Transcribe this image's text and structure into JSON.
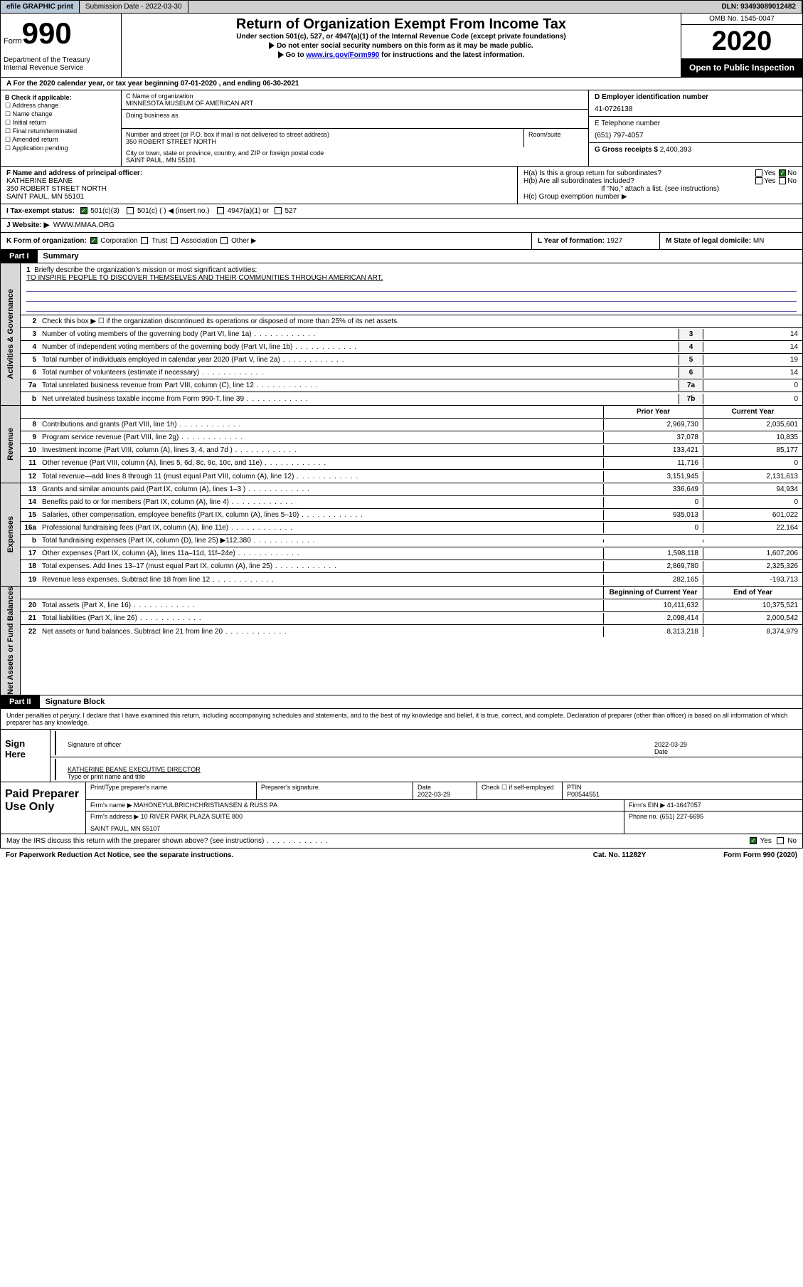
{
  "topbar": {
    "efile": "efile GRAPHIC print",
    "submission_label": "Submission Date",
    "submission_date": "2022-03-30",
    "dln_label": "DLN:",
    "dln": "93493089012482"
  },
  "header": {
    "form_prefix": "Form",
    "form_num": "990",
    "dept": "Department of the Treasury\nInternal Revenue Service",
    "title": "Return of Organization Exempt From Income Tax",
    "subtitle": "Under section 501(c), 527, or 4947(a)(1) of the Internal Revenue Code (except private foundations)",
    "note1": "Do not enter social security numbers on this form as it may be made public.",
    "note2_pre": "Go to ",
    "note2_link": "www.irs.gov/Form990",
    "note2_post": " for instructions and the latest information.",
    "omb": "OMB No. 1545-0047",
    "year": "2020",
    "otp": "Open to Public Inspection"
  },
  "lineA": "A For the 2020 calendar year, or tax year beginning 07-01-2020   , and ending 06-30-2021",
  "sectionB": {
    "label": "B Check if applicable:",
    "items": [
      "☐ Address change",
      "☐ Name change",
      "☐ Initial return",
      "☐ Final return/terminated",
      "☐ Amended return",
      "☐ Application pending"
    ]
  },
  "sectionC": {
    "name_label": "C Name of organization",
    "name": "MINNESOTA MUSEUM OF AMERICAN ART",
    "dba_label": "Doing business as",
    "street_label": "Number and street (or P.O. box if mail is not delivered to street address)",
    "street": "350 ROBERT STREET NORTH",
    "room_label": "Room/suite",
    "city_label": "City or town, state or province, country, and ZIP or foreign postal code",
    "city": "SAINT PAUL, MN  55101"
  },
  "sectionD": {
    "label": "D Employer identification number",
    "ein": "41-0726138"
  },
  "sectionE": {
    "label": "E Telephone number",
    "phone": "(651) 797-4057"
  },
  "sectionG": {
    "label": "G Gross receipts $",
    "amount": "2,400,393"
  },
  "sectionF": {
    "label": "F  Name and address of principal officer:",
    "name": "KATHERINE BEANE",
    "street": "350 ROBERT STREET NORTH",
    "city": "SAINT PAUL, MN  55101"
  },
  "sectionH": {
    "ha": "H(a)  Is this a group return for subordinates?",
    "hb": "H(b)  Are all subordinates included?",
    "hb_note": "If \"No,\" attach a list. (see instructions)",
    "hc": "H(c)  Group exemption number ▶",
    "yes": "Yes",
    "no": "No"
  },
  "sectionI": {
    "label": "I  Tax-exempt status:",
    "opts": [
      "501(c)(3)",
      "501(c) (  ) ◀ (insert no.)",
      "4947(a)(1) or",
      "527"
    ]
  },
  "sectionJ": {
    "label": "J  Website: ▶",
    "value": "WWW.MMAA.ORG"
  },
  "sectionK": {
    "label": "K Form of organization:",
    "opts": [
      "Corporation",
      "Trust",
      "Association",
      "Other ▶"
    ]
  },
  "sectionL": {
    "label": "L Year of formation:",
    "value": "1927"
  },
  "sectionM": {
    "label": "M State of legal domicile:",
    "value": "MN"
  },
  "partI": {
    "tab": "Part I",
    "title": "Summary",
    "governance_label": "Activities & Governance",
    "revenue_label": "Revenue",
    "expenses_label": "Expenses",
    "netassets_label": "Net Assets or Fund Balances",
    "q1": "Briefly describe the organization's mission or most significant activities:",
    "mission": "TO INSPIRE PEOPLE TO DISCOVER THEMSELVES AND THEIR COMMUNITIES THROUGH AMERICAN ART.",
    "q2": "Check this box ▶ ☐  if the organization discontinued its operations or disposed of more than 25% of its net assets.",
    "rows_gov": [
      {
        "n": "3",
        "d": "Number of voting members of the governing body (Part VI, line 1a)",
        "box": "3",
        "v": "14"
      },
      {
        "n": "4",
        "d": "Number of independent voting members of the governing body (Part VI, line 1b)",
        "box": "4",
        "v": "14"
      },
      {
        "n": "5",
        "d": "Total number of individuals employed in calendar year 2020 (Part V, line 2a)",
        "box": "5",
        "v": "19"
      },
      {
        "n": "6",
        "d": "Total number of volunteers (estimate if necessary)",
        "box": "6",
        "v": "14"
      },
      {
        "n": "7a",
        "d": "Total unrelated business revenue from Part VIII, column (C), line 12",
        "box": "7a",
        "v": "0"
      },
      {
        "n": "b",
        "d": "Net unrelated business taxable income from Form 990-T, line 39",
        "box": "7b",
        "v": "0"
      }
    ],
    "col_prior": "Prior Year",
    "col_current": "Current Year",
    "rows_rev": [
      {
        "n": "8",
        "d": "Contributions and grants (Part VIII, line 1h)",
        "p": "2,969,730",
        "c": "2,035,601"
      },
      {
        "n": "9",
        "d": "Program service revenue (Part VIII, line 2g)",
        "p": "37,078",
        "c": "10,835"
      },
      {
        "n": "10",
        "d": "Investment income (Part VIII, column (A), lines 3, 4, and 7d )",
        "p": "133,421",
        "c": "85,177"
      },
      {
        "n": "11",
        "d": "Other revenue (Part VIII, column (A), lines 5, 6d, 8c, 9c, 10c, and 11e)",
        "p": "11,716",
        "c": "0"
      },
      {
        "n": "12",
        "d": "Total revenue—add lines 8 through 11 (must equal Part VIII, column (A), line 12)",
        "p": "3,151,945",
        "c": "2,131,613"
      }
    ],
    "rows_exp": [
      {
        "n": "13",
        "d": "Grants and similar amounts paid (Part IX, column (A), lines 1–3 )",
        "p": "336,649",
        "c": "94,934"
      },
      {
        "n": "14",
        "d": "Benefits paid to or for members (Part IX, column (A), line 4)",
        "p": "0",
        "c": "0"
      },
      {
        "n": "15",
        "d": "Salaries, other compensation, employee benefits (Part IX, column (A), lines 5–10)",
        "p": "935,013",
        "c": "601,022"
      },
      {
        "n": "16a",
        "d": "Professional fundraising fees (Part IX, column (A), line 11e)",
        "p": "0",
        "c": "22,164"
      },
      {
        "n": "b",
        "d": "Total fundraising expenses (Part IX, column (D), line 25) ▶112,380",
        "p": "",
        "c": ""
      },
      {
        "n": "17",
        "d": "Other expenses (Part IX, column (A), lines 11a–11d, 11f–24e)",
        "p": "1,598,118",
        "c": "1,607,206"
      },
      {
        "n": "18",
        "d": "Total expenses. Add lines 13–17 (must equal Part IX, column (A), line 25)",
        "p": "2,869,780",
        "c": "2,325,326"
      },
      {
        "n": "19",
        "d": "Revenue less expenses. Subtract line 18 from line 12",
        "p": "282,165",
        "c": "-193,713"
      }
    ],
    "col_begin": "Beginning of Current Year",
    "col_end": "End of Year",
    "rows_net": [
      {
        "n": "20",
        "d": "Total assets (Part X, line 16)",
        "p": "10,411,632",
        "c": "10,375,521"
      },
      {
        "n": "21",
        "d": "Total liabilities (Part X, line 26)",
        "p": "2,098,414",
        "c": "2,000,542"
      },
      {
        "n": "22",
        "d": "Net assets or fund balances. Subtract line 21 from line 20",
        "p": "8,313,218",
        "c": "8,374,979"
      }
    ]
  },
  "partII": {
    "tab": "Part II",
    "title": "Signature Block",
    "penalty": "Under penalties of perjury, I declare that I have examined this return, including accompanying schedules and statements, and to the best of my knowledge and belief, it is true, correct, and complete. Declaration of preparer (other than officer) is based on all information of which preparer has any knowledge.",
    "sign_here": "Sign Here",
    "sig_officer": "Signature of officer",
    "sig_date": "2022-03-29",
    "date_label": "Date",
    "officer_name": "KATHERINE BEANE  EXECUTIVE DIRECTOR",
    "type_label": "Type or print name and title",
    "paid_prep": "Paid Preparer Use Only",
    "prep_name_label": "Print/Type preparer's name",
    "prep_sig_label": "Preparer's signature",
    "prep_date_label": "Date",
    "prep_date": "2022-03-29",
    "prep_check_label": "Check ☐ if self-employed",
    "ptin_label": "PTIN",
    "ptin": "P00544551",
    "firm_name_label": "Firm's name   ▶",
    "firm_name": "MAHONEYULBRICHCHRISTIANSEN & RUSS PA",
    "firm_ein_label": "Firm's EIN ▶",
    "firm_ein": "41-1647057",
    "firm_addr_label": "Firm's address ▶",
    "firm_addr": "10 RIVER PARK PLAZA SUITE 800",
    "firm_city": "SAINT PAUL, MN  55107",
    "phone_label": "Phone no.",
    "phone": "(651) 227-6695",
    "irs_discuss": "May the IRS discuss this return with the preparer shown above? (see instructions)",
    "yes": "Yes",
    "no": "No"
  },
  "footer": {
    "pra": "For Paperwork Reduction Act Notice, see the separate instructions.",
    "cat": "Cat. No. 11282Y",
    "form": "Form 990 (2020)"
  }
}
